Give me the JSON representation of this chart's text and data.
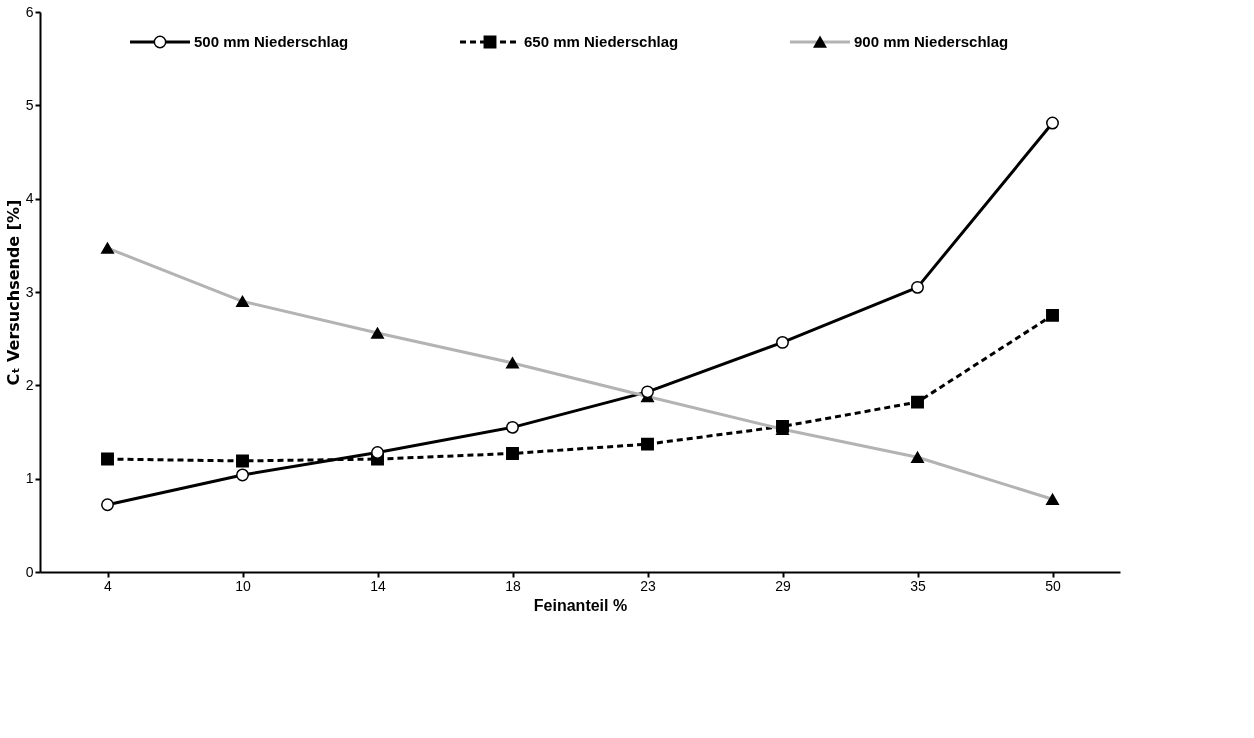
{
  "chart_data": {
    "type": "line",
    "xlabel": "Feinanteil %",
    "ylabel": "Cₜ Versuchsende [%]",
    "categories": [
      "4",
      "10",
      "14",
      "18",
      "23",
      "29",
      "35",
      "50"
    ],
    "series": [
      {
        "name": "500 mm Niederschlag",
        "color": "#000000",
        "marker": "circle",
        "line_style": "solid",
        "values": [
          0.72,
          1.04,
          1.28,
          1.55,
          1.93,
          2.46,
          3.05,
          4.81
        ]
      },
      {
        "name": "650 mm Niederschlag",
        "color": "#000000",
        "marker": "square",
        "line_style": "dashed",
        "values": [
          1.21,
          1.19,
          1.21,
          1.27,
          1.37,
          1.56,
          1.82,
          2.75
        ]
      },
      {
        "name": "900 mm Niederschlag",
        "color": "#b3b3b3",
        "marker": "triangle",
        "line_style": "solid",
        "values": [
          3.47,
          2.9,
          2.56,
          2.24,
          1.88,
          1.53,
          1.23,
          0.78
        ]
      }
    ],
    "ylim": [
      0,
      6
    ],
    "yticks": [
      0,
      1,
      2,
      3,
      4,
      5,
      6
    ],
    "grid": false,
    "legend": "top"
  }
}
